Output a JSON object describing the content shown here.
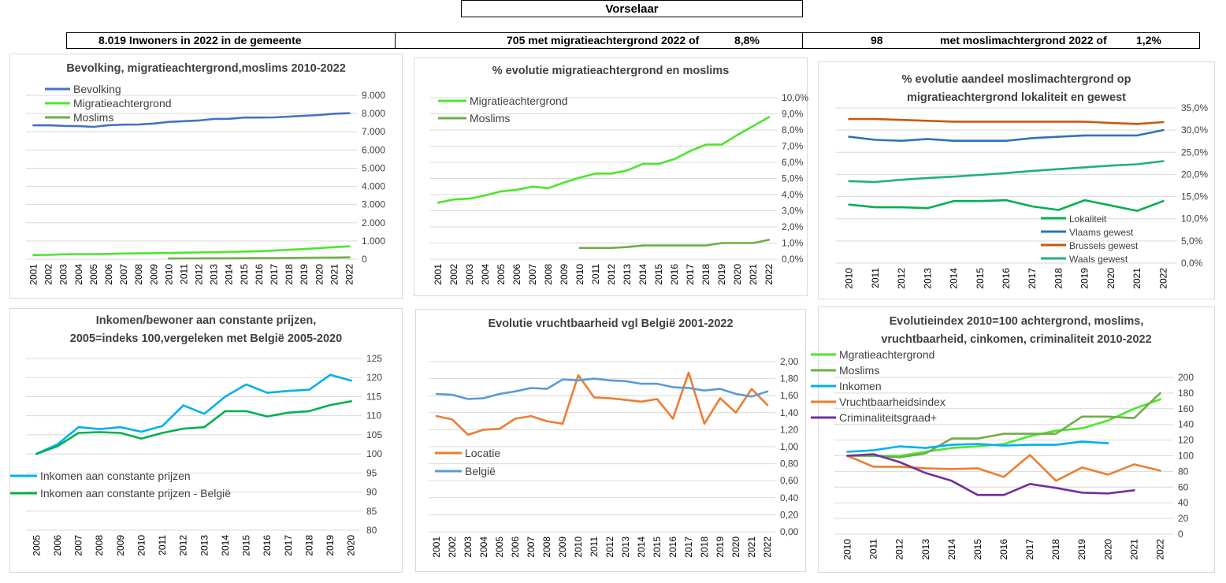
{
  "header": {
    "title": "Vorselaar",
    "stat1": "8.019 Inwoners in 2022 in de gemeente",
    "stat2a": "705 met migratieachtergrond 2022 of",
    "stat2b": "8,8%",
    "stat3a": "98",
    "stat3b": "met moslimachtergrond 2022 of",
    "stat3c": "1,2%"
  },
  "chart_data": [
    {
      "id": "c1",
      "type": "line",
      "title": "Bevolking, migratieachtergrond,moslims  2010-2022",
      "x": [
        "2001",
        "2002",
        "2003",
        "2004",
        "2005",
        "2006",
        "2007",
        "2008",
        "2009",
        "2010",
        "2011",
        "2012",
        "2013",
        "2014",
        "2015",
        "2016",
        "2017",
        "2018",
        "2019",
        "2020",
        "2021",
        "2022"
      ],
      "ylim": [
        0,
        9000
      ],
      "yticks": [
        0,
        1000,
        2000,
        3000,
        4000,
        5000,
        6000,
        7000,
        8000,
        9000
      ],
      "ytick_labels": [
        "0",
        "1.000",
        "2.000",
        "3.000",
        "4.000",
        "5.000",
        "6.000",
        "7.000",
        "8.000",
        "9.000"
      ],
      "grid": true,
      "legend": "top-left",
      "series": [
        {
          "name": "Bevolking",
          "color": "#4472c4",
          "values": [
            7350,
            7360,
            7320,
            7310,
            7270,
            7360,
            7390,
            7400,
            7450,
            7540,
            7580,
            7620,
            7700,
            7710,
            7780,
            7780,
            7790,
            7830,
            7880,
            7920,
            7990,
            8019
          ]
        },
        {
          "name": "Migratieachtergrond",
          "color": "#4ce62e",
          "values": [
            230,
            240,
            270,
            280,
            280,
            290,
            310,
            320,
            330,
            340,
            360,
            370,
            380,
            400,
            420,
            440,
            470,
            520,
            560,
            610,
            660,
            705
          ]
        },
        {
          "name": "Moslims",
          "color": "#70ad47",
          "values": [
            null,
            null,
            null,
            null,
            null,
            null,
            null,
            null,
            null,
            40,
            42,
            45,
            50,
            52,
            55,
            60,
            62,
            70,
            80,
            85,
            92,
            98
          ]
        }
      ]
    },
    {
      "id": "c2",
      "type": "line",
      "title": "% evolutie migratieachtergrond  en moslims",
      "x": [
        "2001",
        "2002",
        "2003",
        "2004",
        "2005",
        "2006",
        "2007",
        "2008",
        "2009",
        "2010",
        "2011",
        "2012",
        "2013",
        "2014",
        "2015",
        "2016",
        "2017",
        "2018",
        "2019",
        "2020",
        "2021",
        "2022"
      ],
      "ylim": [
        0,
        10
      ],
      "yticks": [
        0,
        1,
        2,
        3,
        4,
        5,
        6,
        7,
        8,
        9,
        10
      ],
      "ytick_labels": [
        "0,0%",
        "1,0%",
        "2,0%",
        "3,0%",
        "4,0%",
        "5,0%",
        "6,0%",
        "7,0%",
        "8,0%",
        "9,0%",
        "10,0%"
      ],
      "grid": true,
      "legend": "top-left",
      "series": [
        {
          "name": "Migratieachtergrond",
          "color": "#4ce62e",
          "values": [
            3.5,
            3.7,
            3.75,
            3.95,
            4.2,
            4.3,
            4.5,
            4.4,
            4.75,
            5.05,
            5.3,
            5.3,
            5.5,
            5.9,
            5.9,
            6.2,
            6.7,
            7.1,
            7.1,
            7.7,
            8.25,
            8.8
          ]
        },
        {
          "name": "Moslims",
          "color": "#70ad47",
          "values": [
            null,
            null,
            null,
            null,
            null,
            null,
            null,
            null,
            null,
            0.7,
            0.7,
            0.7,
            0.75,
            0.85,
            0.85,
            0.85,
            0.85,
            0.85,
            1.0,
            1.0,
            1.0,
            1.2
          ]
        }
      ]
    },
    {
      "id": "c3",
      "type": "line",
      "title": "% evolutie aandeel moslimachtergrond op migratieachtergrond lokaliteit  en gewest",
      "title_lines": [
        "% evolutie aandeel moslimachtergrond op",
        "migratieachtergrond lokaliteit  en gewest"
      ],
      "x": [
        "2010",
        "2011",
        "2012",
        "2013",
        "2014",
        "2015",
        "2016",
        "2017",
        "2018",
        "2019",
        "2020",
        "2021",
        "2022"
      ],
      "ylim": [
        0,
        35
      ],
      "yticks": [
        0,
        5,
        10,
        15,
        20,
        25,
        30,
        35
      ],
      "ytick_labels": [
        "0,0%",
        "5,0%",
        "10,0%",
        "15,0%",
        "20,0%",
        "25,0%",
        "30,0%",
        "35,0%"
      ],
      "grid": true,
      "legend": "bottom-right",
      "series": [
        {
          "name": "Lokaliteit",
          "color": "#00b050",
          "values": [
            13.2,
            12.6,
            12.6,
            12.4,
            14.0,
            14.0,
            14.2,
            12.8,
            12.0,
            14.2,
            13.0,
            11.8,
            14.0
          ]
        },
        {
          "name": "Vlaams gewest",
          "color": "#2e75b6",
          "values": [
            28.5,
            27.8,
            27.6,
            28.0,
            27.6,
            27.6,
            27.6,
            28.2,
            28.5,
            28.8,
            28.8,
            28.8,
            30.0
          ]
        },
        {
          "name": "Brussels gewest",
          "color": "#c55a11",
          "values": [
            32.5,
            32.5,
            32.3,
            32.1,
            31.9,
            31.9,
            31.9,
            31.9,
            31.9,
            31.9,
            31.6,
            31.4,
            31.8
          ]
        },
        {
          "name": "Waals gewest",
          "color": "#21b07a",
          "values": [
            18.5,
            18.3,
            18.8,
            19.2,
            19.5,
            19.9,
            20.3,
            20.8,
            21.2,
            21.6,
            22.0,
            22.3,
            23.0
          ]
        }
      ]
    },
    {
      "id": "c4",
      "type": "line",
      "title": "Inkomen/bewoner aan constante prijzen, 2005=indeks 100,vergeleken met België 2005-2020",
      "title_lines": [
        "Inkomen/bewoner aan constante prijzen,",
        "2005=indeks 100,vergeleken met België 2005-2020"
      ],
      "x": [
        "2005",
        "2006",
        "2007",
        "2008",
        "2009",
        "2010",
        "2011",
        "2012",
        "2013",
        "2014",
        "2015",
        "2016",
        "2017",
        "2018",
        "2019",
        "2020"
      ],
      "ylim": [
        80,
        125
      ],
      "yticks": [
        80,
        85,
        90,
        95,
        100,
        105,
        110,
        115,
        120,
        125
      ],
      "ytick_labels": [
        "80",
        "85",
        "90",
        "95",
        "100",
        "105",
        "110",
        "115",
        "120",
        "125"
      ],
      "grid": true,
      "legend": "bottom-left",
      "series": [
        {
          "name": "Inkomen aan constante prijzen",
          "color": "#00b0f0",
          "values": [
            100,
            102.5,
            107,
            106.5,
            107,
            105.8,
            107.3,
            112.7,
            110.5,
            115,
            118.2,
            116,
            116.5,
            116.8,
            120.7,
            119.2
          ]
        },
        {
          "name": "Inkomen aan constante prijzen - België",
          "color": "#00b050",
          "values": [
            100,
            102,
            105.5,
            105.7,
            105.5,
            104,
            105.5,
            106.6,
            107,
            111.2,
            111.2,
            109.8,
            110.8,
            111.2,
            112.8,
            113.8
          ]
        }
      ]
    },
    {
      "id": "c5",
      "type": "line",
      "title": "Evolutie vruchtbaarheid vgl België 2001-2022",
      "x": [
        "2001",
        "2002",
        "2003",
        "2004",
        "2005",
        "2006",
        "2007",
        "2008",
        "2009",
        "2010",
        "2011",
        "2012",
        "2013",
        "2014",
        "2015",
        "2016",
        "2017",
        "2018",
        "2019",
        "2020",
        "2021",
        "2022"
      ],
      "ylim": [
        0,
        2
      ],
      "yticks": [
        0,
        0.2,
        0.4,
        0.6,
        0.8,
        1,
        1.2,
        1.4,
        1.6,
        1.8,
        2
      ],
      "ytick_labels": [
        "0,00",
        "0,20",
        "0,40",
        "0,60",
        "0,80",
        "1,00",
        "1,20",
        "1,40",
        "1,60",
        "1,80",
        "2,00"
      ],
      "grid": true,
      "legend": "bottom-left",
      "series": [
        {
          "name": "Locatie",
          "color": "#ed7d31",
          "values": [
            1.36,
            1.32,
            1.14,
            1.2,
            1.21,
            1.33,
            1.36,
            1.3,
            1.27,
            1.84,
            1.58,
            1.57,
            1.55,
            1.53,
            1.56,
            1.33,
            1.87,
            1.27,
            1.57,
            1.4,
            1.68,
            1.49
          ]
        },
        {
          "name": "België",
          "color": "#5b9bd5",
          "values": [
            1.62,
            1.61,
            1.56,
            1.57,
            1.62,
            1.65,
            1.69,
            1.68,
            1.79,
            1.78,
            1.8,
            1.78,
            1.77,
            1.74,
            1.74,
            1.7,
            1.69,
            1.66,
            1.68,
            1.62,
            1.59,
            1.65
          ]
        }
      ]
    },
    {
      "id": "c6",
      "type": "line",
      "title": "Evolutieindex 2010=100 achtergrond, moslims, vruchtbaarheid, cinkomen, criminaliteit  2010-2022",
      "title_lines": [
        "Evolutieindex 2010=100 achtergrond, moslims,",
        "vruchtbaarheid, cinkomen, criminaliteit  2010-2022"
      ],
      "x": [
        "2010",
        "2011",
        "2012",
        "2013",
        "2014",
        "2015",
        "2016",
        "2017",
        "2018",
        "2019",
        "2020",
        "2021",
        "2022"
      ],
      "ylim": [
        0,
        200
      ],
      "yticks": [
        0,
        20,
        40,
        60,
        80,
        100,
        120,
        140,
        160,
        180,
        200
      ],
      "ytick_labels": [
        "0",
        "20",
        "40",
        "60",
        "80",
        "100",
        "120",
        "140",
        "160",
        "180",
        "200"
      ],
      "grid": true,
      "legend": "top-left",
      "series": [
        {
          "name": "Mgratieachtergrond",
          "color": "#4ce62e",
          "values": [
            100,
            100,
            100,
            105,
            110,
            112,
            115,
            125,
            132,
            135,
            145,
            160,
            172
          ]
        },
        {
          "name": "Moslims",
          "color": "#70ad47",
          "values": [
            100,
            100,
            98,
            103,
            122,
            122,
            128,
            128,
            128,
            150,
            150,
            148,
            180
          ]
        },
        {
          "name": "Inkomen",
          "color": "#00b0f0",
          "values": [
            105,
            107,
            112,
            110,
            114,
            115,
            113,
            114,
            114,
            118,
            116,
            null,
            null
          ]
        },
        {
          "name": "Vruchtbaarheidsindex",
          "color": "#ed7d31",
          "values": [
            100,
            86,
            86,
            84,
            83,
            84,
            73,
            101,
            68,
            85,
            76,
            89,
            81
          ]
        },
        {
          "name": "Criminaliteitsgraad+",
          "color": "#7030a0",
          "values": [
            100,
            102,
            92,
            78,
            68,
            50,
            50,
            64,
            59,
            53,
            52,
            56,
            null
          ]
        }
      ]
    }
  ]
}
